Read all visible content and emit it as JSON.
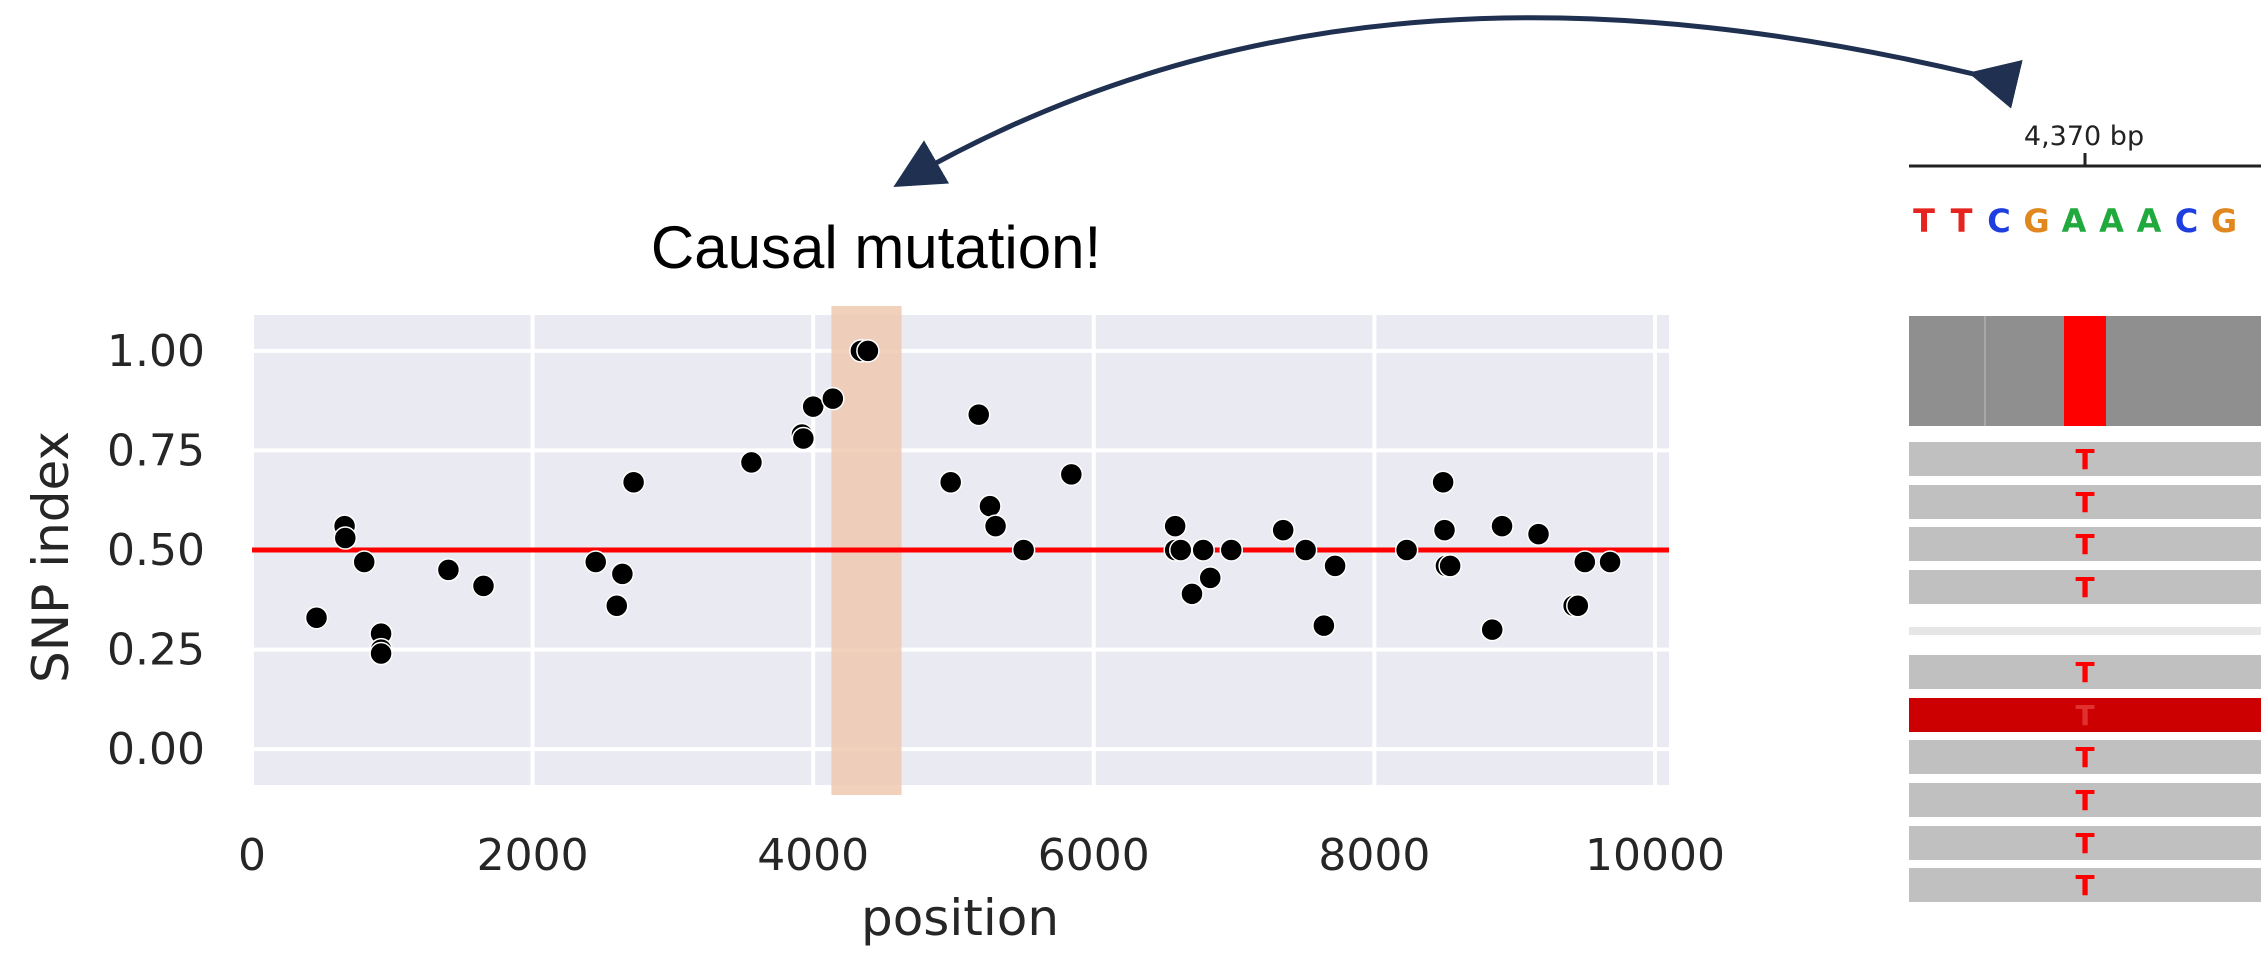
{
  "annotation": {
    "text": "Causal mutation!"
  },
  "colors": {
    "plot_bg": "#eaeaf2",
    "grid": "#ffffff",
    "point": "#000000",
    "threshold": "#ff0000",
    "highlight": "#efc8b0",
    "arrow": "#1f3050",
    "read_bg": "#c0c0c0",
    "coverage_bg": "#8f8f8f",
    "mismatch": "#ff0000",
    "dark_read": "#cc0000"
  },
  "chart_data": {
    "type": "scatter",
    "title": "",
    "xlabel": "position",
    "ylabel": "SNP index",
    "xlim": [
      0,
      10100
    ],
    "ylim": [
      -0.09,
      1.09
    ],
    "xticks": [
      "0",
      "2000",
      "4000",
      "6000",
      "8000",
      "10000"
    ],
    "yticks": [
      "0.00",
      "0.25",
      "0.50",
      "0.75",
      "1.00"
    ],
    "grid": true,
    "threshold_y": 0.5,
    "highlight_range": [
      4130,
      4630
    ],
    "points": [
      {
        "x": 460,
        "y": 0.33
      },
      {
        "x": 660,
        "y": 0.56
      },
      {
        "x": 665,
        "y": 0.53
      },
      {
        "x": 800,
        "y": 0.47
      },
      {
        "x": 920,
        "y": 0.29
      },
      {
        "x": 920,
        "y": 0.25
      },
      {
        "x": 920,
        "y": 0.24
      },
      {
        "x": 1400,
        "y": 0.45
      },
      {
        "x": 1650,
        "y": 0.41
      },
      {
        "x": 2450,
        "y": 0.47
      },
      {
        "x": 2600,
        "y": 0.36
      },
      {
        "x": 2640,
        "y": 0.44
      },
      {
        "x": 2720,
        "y": 0.67
      },
      {
        "x": 3560,
        "y": 0.72
      },
      {
        "x": 3920,
        "y": 0.79
      },
      {
        "x": 3930,
        "y": 0.78
      },
      {
        "x": 4000,
        "y": 0.86
      },
      {
        "x": 4140,
        "y": 0.88
      },
      {
        "x": 4340,
        "y": 1.0
      },
      {
        "x": 4390,
        "y": 1.0
      },
      {
        "x": 4980,
        "y": 0.67
      },
      {
        "x": 5180,
        "y": 0.84
      },
      {
        "x": 5260,
        "y": 0.61
      },
      {
        "x": 5300,
        "y": 0.56
      },
      {
        "x": 5500,
        "y": 0.5
      },
      {
        "x": 5840,
        "y": 0.69
      },
      {
        "x": 6580,
        "y": 0.56
      },
      {
        "x": 6580,
        "y": 0.5
      },
      {
        "x": 6620,
        "y": 0.5
      },
      {
        "x": 6700,
        "y": 0.39
      },
      {
        "x": 6780,
        "y": 0.5
      },
      {
        "x": 6830,
        "y": 0.43
      },
      {
        "x": 6980,
        "y": 0.5
      },
      {
        "x": 7350,
        "y": 0.55
      },
      {
        "x": 7510,
        "y": 0.5
      },
      {
        "x": 7640,
        "y": 0.31
      },
      {
        "x": 7720,
        "y": 0.46
      },
      {
        "x": 8230,
        "y": 0.5
      },
      {
        "x": 8490,
        "y": 0.67
      },
      {
        "x": 8500,
        "y": 0.55
      },
      {
        "x": 8510,
        "y": 0.46
      },
      {
        "x": 8540,
        "y": 0.46
      },
      {
        "x": 8840,
        "y": 0.3
      },
      {
        "x": 8910,
        "y": 0.56
      },
      {
        "x": 9170,
        "y": 0.54
      },
      {
        "x": 9420,
        "y": 0.36
      },
      {
        "x": 9450,
        "y": 0.36
      },
      {
        "x": 9500,
        "y": 0.47
      },
      {
        "x": 9680,
        "y": 0.47
      }
    ]
  },
  "genome_view": {
    "ruler_label": "4,370 bp",
    "sequence": [
      {
        "base": "T",
        "color": "#e5231f"
      },
      {
        "base": "T",
        "color": "#e5231f"
      },
      {
        "base": "C",
        "color": "#1f3ee0"
      },
      {
        "base": "G",
        "color": "#e0871f"
      },
      {
        "base": "A",
        "color": "#20a93c"
      },
      {
        "base": "A",
        "color": "#20a93c"
      },
      {
        "base": "A",
        "color": "#20a93c"
      },
      {
        "base": "C",
        "color": "#1f3ee0"
      },
      {
        "base": "G",
        "color": "#e0871f"
      }
    ],
    "read_base": "T",
    "reads": [
      "T",
      "T",
      "T",
      "T",
      "gap",
      "T",
      "dark",
      "T",
      "T",
      "T",
      "T"
    ]
  }
}
